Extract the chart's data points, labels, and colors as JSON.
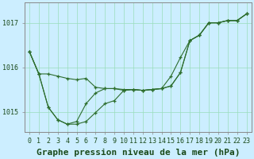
{
  "background_color": "#cceeff",
  "plot_bg_color": "#cceeff",
  "grid_color": "#99ddbb",
  "line_color": "#2d6e2d",
  "title": "Graphe pression niveau de la mer (hPa)",
  "xlim": [
    -0.5,
    23.5
  ],
  "ylim": [
    1014.55,
    1017.45
  ],
  "yticks": [
    1015,
    1016,
    1017
  ],
  "xtick_labels": [
    "0",
    "1",
    "2",
    "3",
    "4",
    "5",
    "6",
    "7",
    "8",
    "9",
    "10",
    "11",
    "12",
    "13",
    "14",
    "15",
    "16",
    "17",
    "18",
    "19",
    "20",
    "21",
    "22",
    "23"
  ],
  "series": [
    [
      1016.35,
      1015.85,
      1015.85,
      1015.8,
      1015.75,
      1015.72,
      1015.75,
      1015.55,
      1015.52,
      1015.52,
      1015.5,
      1015.5,
      1015.48,
      1015.5,
      1015.52,
      1015.58,
      1015.88,
      1016.6,
      1016.72,
      1017.0,
      1017.0,
      1017.05,
      1017.05,
      1017.2
    ],
    [
      1016.35,
      1015.85,
      1015.1,
      1014.82,
      1014.72,
      1014.72,
      1014.78,
      1014.98,
      1015.18,
      1015.25,
      1015.48,
      1015.5,
      1015.48,
      1015.5,
      1015.52,
      1015.58,
      1015.88,
      1016.6,
      1016.72,
      1017.0,
      1017.0,
      1017.05,
      1017.05,
      1017.2
    ],
    [
      1016.35,
      1015.85,
      1015.1,
      1014.82,
      1014.72,
      1014.78,
      1015.18,
      1015.42,
      1015.52,
      1015.52,
      1015.48,
      1015.5,
      1015.48,
      1015.5,
      1015.52,
      1015.8,
      1016.22,
      1016.6,
      1016.72,
      1017.0,
      1017.0,
      1017.05,
      1017.05,
      1017.2
    ]
  ],
  "title_fontsize": 8,
  "tick_fontsize": 6,
  "label_color": "#1a4a1a"
}
